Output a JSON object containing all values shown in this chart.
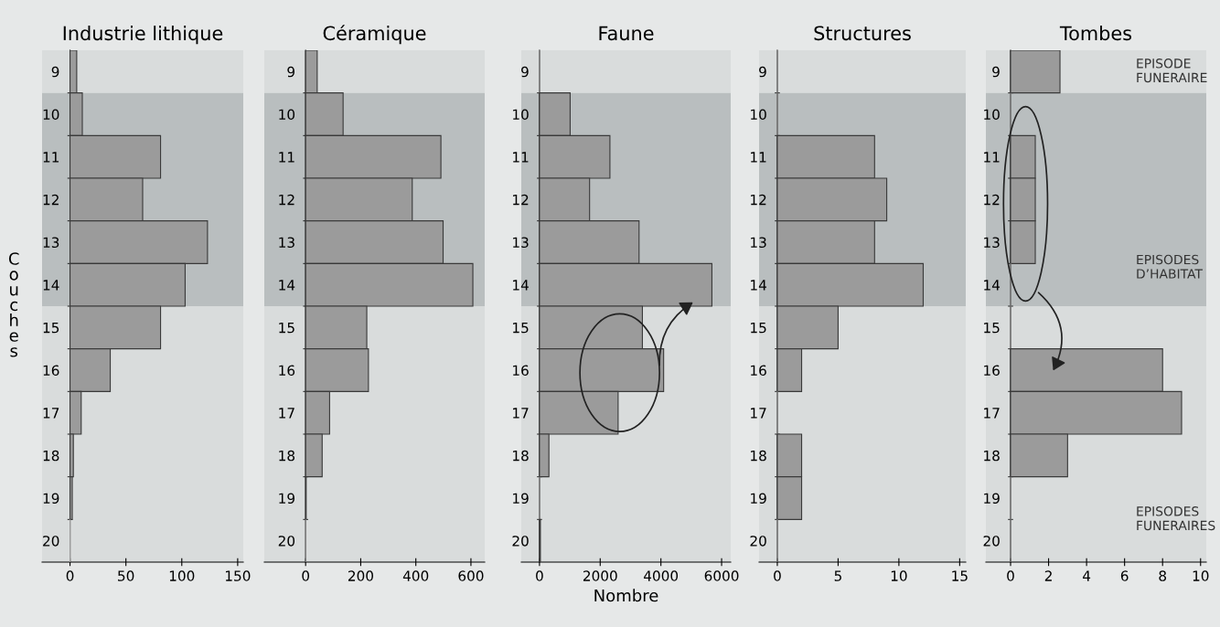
{
  "chart_data": [
    {
      "type": "bar",
      "orientation": "horizontal",
      "title": "Industrie lithique",
      "ylabel": "Couches",
      "categories": [
        "9",
        "10",
        "11",
        "12",
        "13",
        "14",
        "15",
        "16",
        "17",
        "18",
        "19",
        "20"
      ],
      "values": [
        6,
        11,
        81,
        65,
        123,
        103,
        81,
        36,
        10,
        3,
        2,
        0
      ],
      "color": "#9b9b9b",
      "xlim": [
        -25,
        155
      ],
      "xticks": [
        0,
        50,
        100,
        150
      ],
      "bands": [
        {
          "axis": "y",
          "from": "9",
          "to": "9",
          "color": "#d9dcdc"
        },
        {
          "axis": "y",
          "from": "10",
          "to": "14",
          "color": "#b9bebf"
        },
        {
          "axis": "y",
          "from": "15",
          "to": "20",
          "color": "#d9dcdc"
        }
      ]
    },
    {
      "type": "bar",
      "orientation": "horizontal",
      "title": "Céramique",
      "categories": [
        "9",
        "10",
        "11",
        "12",
        "13",
        "14",
        "15",
        "16",
        "17",
        "18",
        "19",
        "20"
      ],
      "values": [
        42,
        136,
        491,
        387,
        499,
        607,
        222,
        228,
        87,
        60,
        2,
        0
      ],
      "color": "#9b9b9b",
      "xlim": [
        -150,
        650
      ],
      "xticks": [
        0,
        200,
        400,
        600
      ],
      "bands": [
        {
          "axis": "y",
          "from": "9",
          "to": "9",
          "color": "#d9dcdc"
        },
        {
          "axis": "y",
          "from": "10",
          "to": "14",
          "color": "#b9bebf"
        },
        {
          "axis": "y",
          "from": "15",
          "to": "20",
          "color": "#d9dcdc"
        }
      ]
    },
    {
      "type": "bar",
      "orientation": "horizontal",
      "title": "Faune",
      "xlabel": "Nombre",
      "categories": [
        "9",
        "10",
        "11",
        "12",
        "13",
        "14",
        "15",
        "16",
        "17",
        "18",
        "19",
        "20"
      ],
      "values": [
        0,
        1010,
        2320,
        1650,
        3280,
        5680,
        3390,
        4090,
        2590,
        310,
        0,
        30
      ],
      "color": "#9b9b9b",
      "xlim": [
        -600,
        6300
      ],
      "xticks": [
        0,
        2000,
        4000,
        6000
      ],
      "bands": [
        {
          "axis": "y",
          "from": "9",
          "to": "9",
          "color": "#d9dcdc"
        },
        {
          "axis": "y",
          "from": "10",
          "to": "14",
          "color": "#b9bebf"
        },
        {
          "axis": "y",
          "from": "15",
          "to": "20",
          "color": "#d9dcdc"
        }
      ]
    },
    {
      "type": "bar",
      "orientation": "horizontal",
      "title": "Structures",
      "categories": [
        "9",
        "10",
        "11",
        "12",
        "13",
        "14",
        "15",
        "16",
        "17",
        "18",
        "19",
        "20"
      ],
      "values": [
        0,
        0,
        8,
        9,
        8,
        12,
        5,
        2,
        0,
        2,
        2,
        0
      ],
      "color": "#9b9b9b",
      "xlim": [
        -1.5,
        15.5
      ],
      "xticks": [
        0,
        5,
        10,
        15
      ],
      "bands": [
        {
          "axis": "y",
          "from": "9",
          "to": "9",
          "color": "#d9dcdc"
        },
        {
          "axis": "y",
          "from": "10",
          "to": "14",
          "color": "#b9bebf"
        },
        {
          "axis": "y",
          "from": "15",
          "to": "20",
          "color": "#d9dcdc"
        }
      ]
    },
    {
      "type": "bar",
      "orientation": "horizontal",
      "title": "Tombes",
      "categories": [
        "9",
        "10",
        "11",
        "12",
        "13",
        "14",
        "15",
        "16",
        "17",
        "18",
        "19",
        "20"
      ],
      "values": [
        2.6,
        0,
        1.3,
        1.3,
        1.3,
        0,
        0,
        8,
        9,
        3,
        0,
        0
      ],
      "color": "#9b9b9b",
      "xlim": [
        -1.3,
        10.3
      ],
      "xticks": [
        0,
        2,
        4,
        6,
        8,
        10
      ],
      "bands": [
        {
          "axis": "y",
          "from": "9",
          "to": "9",
          "color": "#d9dcdc",
          "label": "EPISODE\nFUNERAIRE"
        },
        {
          "axis": "y",
          "from": "10",
          "to": "14",
          "color": "#b9bebf",
          "label": "EPISODES\nD’HABITAT"
        },
        {
          "axis": "y",
          "from": "15",
          "to": "20",
          "color": "#d9dcdc",
          "label": "EPISODES\nFUNERAIRES"
        }
      ]
    }
  ]
}
